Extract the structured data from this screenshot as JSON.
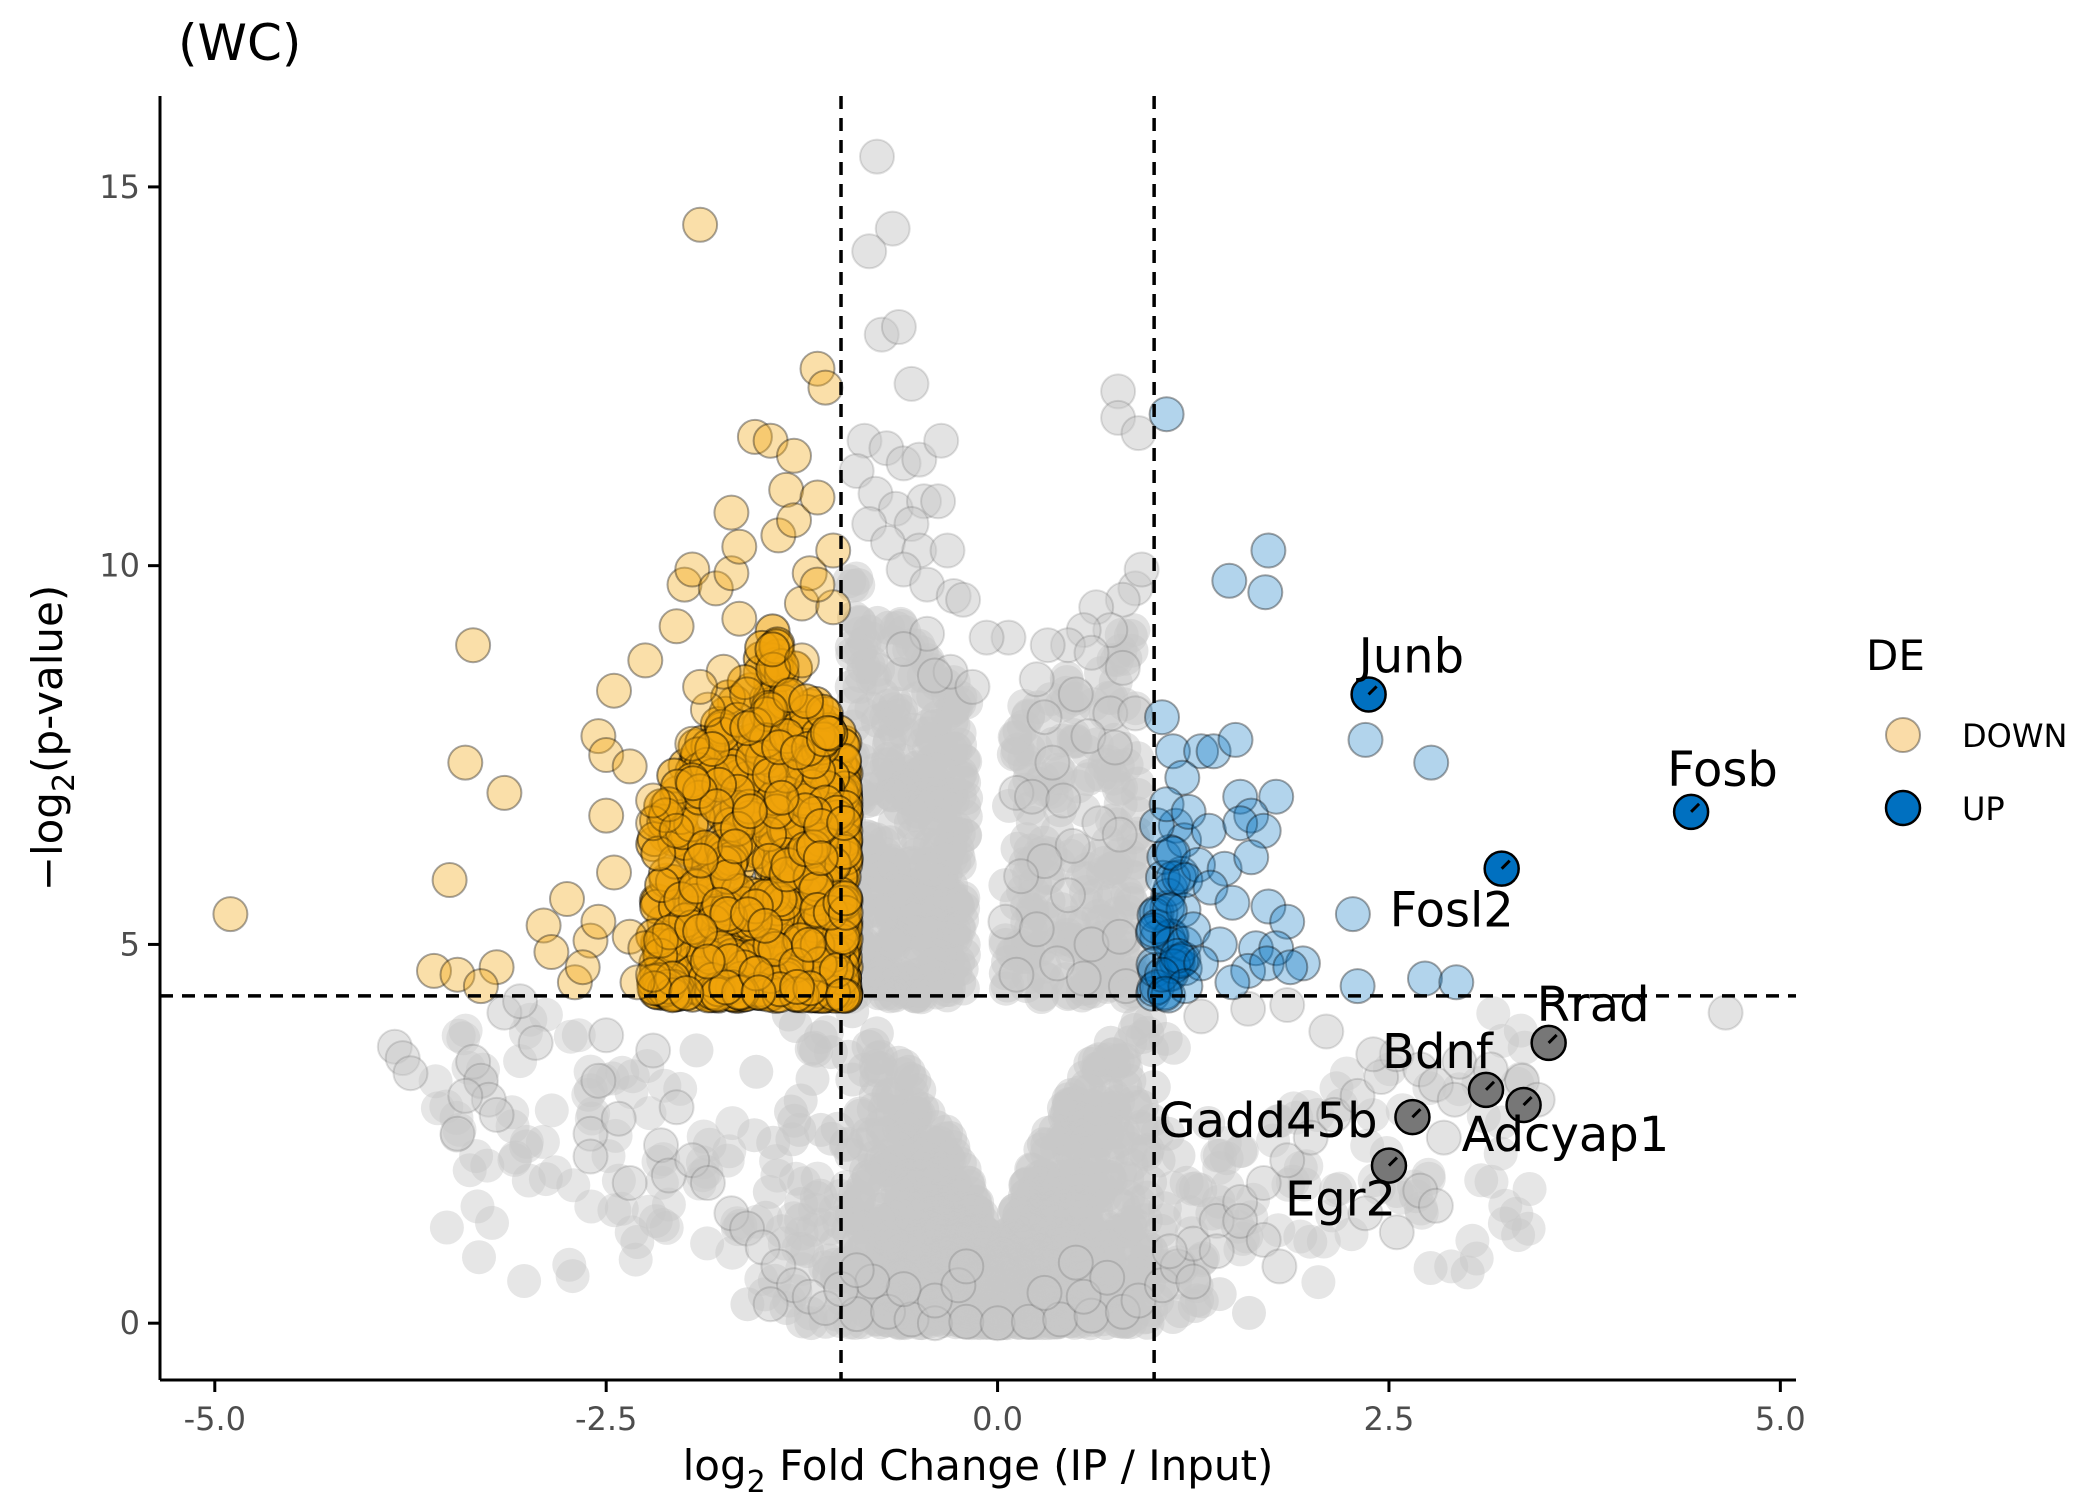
{
  "chart_data": {
    "type": "scatter",
    "title": "(WC)",
    "xlabel": "Fold Change (IP / Input)",
    "xlabel_prefix": "log",
    "xlabel_sub": "2",
    "ylabel": "(p-value)",
    "ylabel_prefix": "−log",
    "ylabel_sub": "2",
    "xlim": [
      -5.35,
      5.1
    ],
    "ylim": [
      -0.75,
      16.2
    ],
    "x_ticks": [
      -5.0,
      -2.5,
      0.0,
      2.5,
      5.0
    ],
    "x_tick_labels": [
      "-5.0",
      "-2.5",
      "0.0",
      "2.5",
      "5.0"
    ],
    "y_ticks": [
      0,
      5,
      10,
      15
    ],
    "y_tick_labels": [
      "0",
      "5",
      "10",
      "15"
    ],
    "thresholds": {
      "fc": [
        -1,
        1
      ],
      "pvalue": 4.32
    },
    "grid": false,
    "legend": {
      "title": "DE",
      "placement": "right",
      "entries": [
        {
          "label": "DOWN",
          "color": "#F5C060"
        },
        {
          "label": "UP",
          "color": "#1F77B4"
        }
      ]
    },
    "colors": {
      "down": "#F0A30A",
      "up": "#0070C0",
      "ns": "#C8C8C8",
      "highlight_ns": "#777777"
    },
    "down_points": [
      [
        -4.9,
        5.4
      ],
      [
        -3.35,
        8.95
      ],
      [
        -3.4,
        7.4
      ],
      [
        -3.15,
        7.0
      ],
      [
        -3.5,
        5.85
      ],
      [
        -3.6,
        4.65
      ],
      [
        -3.45,
        4.6
      ],
      [
        -3.2,
        4.7
      ],
      [
        -3.3,
        4.45
      ],
      [
        -2.9,
        5.25
      ],
      [
        -2.85,
        4.9
      ],
      [
        -2.75,
        5.6
      ],
      [
        -2.7,
        4.5
      ],
      [
        -2.6,
        5.05
      ],
      [
        -2.65,
        4.7
      ],
      [
        -2.55,
        5.3
      ],
      [
        -2.5,
        6.7
      ],
      [
        -2.55,
        7.75
      ],
      [
        -2.5,
        7.5
      ],
      [
        -2.45,
        8.35
      ],
      [
        -2.45,
        5.95
      ],
      [
        -2.35,
        5.1
      ],
      [
        -2.3,
        4.5
      ],
      [
        -2.25,
        8.75
      ],
      [
        -2.2,
        6.6
      ],
      [
        -2.25,
        4.95
      ],
      [
        -2.15,
        5.05
      ],
      [
        -2.2,
        4.6
      ],
      [
        -2.1,
        6.85
      ],
      [
        -2.05,
        6.5
      ],
      [
        -2.05,
        9.2
      ],
      [
        -2.0,
        9.75
      ],
      [
        -1.95,
        9.95
      ],
      [
        -1.95,
        7.65
      ],
      [
        -1.9,
        14.5
      ],
      [
        -1.85,
        8.1
      ],
      [
        -1.8,
        9.7
      ],
      [
        -1.75,
        8.6
      ],
      [
        -1.7,
        9.9
      ],
      [
        -1.65,
        9.3
      ],
      [
        -1.65,
        10.25
      ],
      [
        -1.7,
        10.7
      ],
      [
        -1.55,
        11.7
      ],
      [
        -1.45,
        11.65
      ],
      [
        -1.4,
        10.4
      ],
      [
        -1.3,
        11.45
      ],
      [
        -1.35,
        11.0
      ],
      [
        -1.3,
        10.6
      ],
      [
        -1.25,
        9.5
      ],
      [
        -1.2,
        9.9
      ],
      [
        -1.15,
        10.9
      ],
      [
        -1.15,
        12.6
      ],
      [
        -1.1,
        12.35
      ],
      [
        -1.05,
        9.45
      ],
      [
        -1.05,
        10.2
      ],
      [
        -1.15,
        9.75
      ],
      [
        -1.6,
        8.3
      ],
      [
        -1.55,
        7.9
      ],
      [
        -1.45,
        8.1
      ],
      [
        -1.25,
        8.75
      ],
      [
        -1.9,
        8.4
      ],
      [
        -2.35,
        7.35
      ],
      [
        -2.2,
        6.9
      ]
    ],
    "up_points": [
      [
        1.08,
        12.0
      ],
      [
        1.73,
        10.2
      ],
      [
        1.48,
        9.8
      ],
      [
        1.71,
        9.65
      ],
      [
        1.05,
        8.0
      ],
      [
        2.35,
        7.7
      ],
      [
        2.77,
        7.4
      ],
      [
        1.12,
        7.55
      ],
      [
        1.3,
        7.55
      ],
      [
        1.38,
        7.55
      ],
      [
        1.52,
        7.7
      ],
      [
        1.18,
        7.2
      ],
      [
        1.55,
        6.95
      ],
      [
        1.78,
        6.95
      ],
      [
        1.62,
        6.7
      ],
      [
        1.08,
        6.85
      ],
      [
        1.22,
        6.75
      ],
      [
        1.35,
        6.5
      ],
      [
        1.55,
        6.6
      ],
      [
        1.7,
        6.5
      ],
      [
        1.12,
        6.2
      ],
      [
        1.28,
        6.05
      ],
      [
        1.45,
        6.0
      ],
      [
        1.62,
        6.15
      ],
      [
        1.2,
        5.85
      ],
      [
        1.36,
        5.75
      ],
      [
        1.5,
        5.55
      ],
      [
        1.73,
        5.5
      ],
      [
        1.85,
        5.3
      ],
      [
        2.27,
        5.4
      ],
      [
        1.1,
        5.45
      ],
      [
        1.25,
        5.2
      ],
      [
        1.42,
        5.0
      ],
      [
        1.65,
        4.95
      ],
      [
        1.78,
        4.95
      ],
      [
        1.95,
        4.75
      ],
      [
        1.15,
        4.85
      ],
      [
        1.3,
        4.75
      ],
      [
        1.6,
        4.65
      ],
      [
        1.72,
        4.75
      ],
      [
        1.87,
        4.7
      ],
      [
        2.3,
        4.45
      ],
      [
        2.73,
        4.55
      ],
      [
        2.93,
        4.5
      ],
      [
        1.05,
        4.6
      ],
      [
        1.2,
        4.45
      ],
      [
        1.5,
        4.5
      ],
      [
        1.07,
        4.35
      ]
    ],
    "up_sig_points": [
      {
        "label": "Junb",
        "x": 2.37,
        "y": 8.3
      },
      {
        "label": "Fosb",
        "x": 4.43,
        "y": 6.75
      },
      {
        "label": "Fosl2",
        "x": 3.22,
        "y": 6.0
      }
    ],
    "ns_labeled_points": [
      {
        "label": "Rrad",
        "x": 3.52,
        "y": 3.7
      },
      {
        "label": "Bdnf",
        "x": 3.12,
        "y": 3.08
      },
      {
        "label": "Adcyap1",
        "x": 3.36,
        "y": 2.88
      },
      {
        "label": "Gadd45b",
        "x": 2.65,
        "y": 2.72
      },
      {
        "label": "Egr2",
        "x": 2.5,
        "y": 2.08
      }
    ],
    "ns_points": [
      [
        -0.77,
        15.4
      ],
      [
        -0.67,
        14.45
      ],
      [
        -0.82,
        14.15
      ],
      [
        -0.74,
        13.05
      ],
      [
        -0.63,
        13.15
      ],
      [
        -0.55,
        12.4
      ],
      [
        -0.85,
        11.65
      ],
      [
        -0.71,
        11.55
      ],
      [
        -0.6,
        11.35
      ],
      [
        -0.5,
        11.4
      ],
      [
        -0.36,
        11.65
      ],
      [
        -0.9,
        11.25
      ],
      [
        -0.78,
        10.95
      ],
      [
        -0.65,
        10.75
      ],
      [
        -0.47,
        10.85
      ],
      [
        -0.55,
        10.55
      ],
      [
        -0.38,
        10.85
      ],
      [
        -0.82,
        10.55
      ],
      [
        -0.7,
        10.3
      ],
      [
        -0.5,
        10.2
      ],
      [
        -0.32,
        10.2
      ],
      [
        -0.6,
        9.95
      ],
      [
        -0.45,
        9.75
      ],
      [
        -0.28,
        9.6
      ],
      [
        -0.22,
        9.55
      ],
      [
        0.07,
        9.05
      ],
      [
        -0.07,
        9.05
      ],
      [
        -0.3,
        8.6
      ],
      [
        -0.16,
        8.4
      ],
      [
        -0.45,
        9.1
      ],
      [
        -0.6,
        8.9
      ],
      [
        -0.4,
        8.55
      ],
      [
        0.77,
        12.3
      ],
      [
        0.77,
        11.95
      ],
      [
        0.9,
        11.75
      ],
      [
        0.88,
        9.7
      ],
      [
        0.8,
        9.55
      ],
      [
        0.63,
        9.45
      ],
      [
        0.92,
        9.95
      ],
      [
        0.72,
        9.15
      ],
      [
        0.55,
        9.15
      ],
      [
        0.45,
        8.95
      ],
      [
        0.32,
        8.95
      ],
      [
        0.6,
        8.85
      ],
      [
        0.8,
        8.65
      ],
      [
        0.25,
        8.5
      ],
      [
        0.5,
        8.3
      ],
      [
        0.72,
        8.05
      ],
      [
        0.88,
        8.05
      ],
      [
        0.3,
        8.0
      ],
      [
        0.58,
        7.75
      ],
      [
        0.75,
        7.6
      ],
      [
        0.35,
        7.4
      ],
      [
        0.12,
        7.0
      ],
      [
        0.22,
        6.95
      ],
      [
        0.42,
        6.9
      ],
      [
        0.65,
        6.6
      ],
      [
        0.78,
        6.45
      ],
      [
        0.48,
        6.3
      ],
      [
        0.3,
        6.1
      ],
      [
        0.15,
        5.9
      ],
      [
        0.45,
        5.65
      ],
      [
        0.05,
        5.3
      ],
      [
        0.25,
        5.2
      ],
      [
        0.6,
        5.0
      ],
      [
        0.78,
        5.1
      ],
      [
        0.38,
        4.75
      ],
      [
        0.12,
        4.6
      ],
      [
        0.55,
        4.55
      ],
      [
        0.82,
        4.45
      ],
      [
        -3.85,
        3.65
      ],
      [
        -3.8,
        3.5
      ],
      [
        -3.75,
        3.3
      ],
      [
        -3.35,
        3.45
      ],
      [
        -3.3,
        3.2
      ],
      [
        -3.25,
        2.95
      ],
      [
        -3.4,
        3.0
      ],
      [
        -3.45,
        2.5
      ],
      [
        -3.2,
        2.75
      ],
      [
        -3.15,
        4.1
      ],
      [
        -3.05,
        4.25
      ],
      [
        -2.95,
        3.7
      ],
      [
        -2.6,
        2.5
      ],
      [
        -2.6,
        2.2
      ],
      [
        -2.55,
        3.2
      ],
      [
        -2.5,
        3.8
      ],
      [
        -2.42,
        2.7
      ],
      [
        -2.35,
        1.85
      ],
      [
        -2.2,
        3.6
      ],
      [
        -2.15,
        2.35
      ],
      [
        -2.1,
        1.95
      ],
      [
        -2.05,
        2.85
      ],
      [
        -1.95,
        2.15
      ],
      [
        -1.85,
        1.85
      ],
      [
        -1.7,
        1.45
      ],
      [
        -1.6,
        1.25
      ],
      [
        -1.5,
        1.0
      ],
      [
        -1.4,
        0.75
      ],
      [
        -1.3,
        0.5
      ],
      [
        -1.2,
        0.35
      ],
      [
        -1.45,
        0.25
      ],
      [
        -1.1,
        0.2
      ],
      [
        -0.9,
        0.12
      ],
      [
        -0.7,
        0.15
      ],
      [
        -0.55,
        0.05
      ],
      [
        -0.4,
        0.0
      ],
      [
        -0.2,
        0.02
      ],
      [
        0.0,
        0.0
      ],
      [
        0.2,
        0.02
      ],
      [
        0.4,
        0.05
      ],
      [
        0.6,
        0.1
      ],
      [
        0.8,
        0.15
      ],
      [
        0.9,
        0.3
      ],
      [
        1.05,
        0.5
      ],
      [
        1.15,
        0.75
      ],
      [
        1.25,
        1.05
      ],
      [
        1.4,
        1.35
      ],
      [
        1.55,
        1.6
      ],
      [
        1.7,
        1.85
      ],
      [
        1.85,
        2.15
      ],
      [
        2.0,
        2.45
      ],
      [
        2.15,
        2.75
      ],
      [
        2.3,
        3.0
      ],
      [
        2.45,
        3.25
      ],
      [
        2.55,
        3.55
      ],
      [
        2.7,
        3.35
      ],
      [
        2.8,
        3.15
      ],
      [
        2.92,
        2.95
      ],
      [
        2.95,
        3.45
      ],
      [
        2.85,
        2.45
      ],
      [
        2.7,
        1.75
      ],
      [
        2.8,
        1.55
      ],
      [
        2.35,
        1.45
      ],
      [
        2.55,
        1.2
      ],
      [
        3.15,
        3.35
      ],
      [
        3.35,
        3.2
      ],
      [
        3.45,
        2.95
      ],
      [
        2.4,
        3.55
      ],
      [
        2.1,
        3.85
      ],
      [
        1.85,
        4.2
      ],
      [
        1.6,
        4.15
      ],
      [
        1.3,
        4.05
      ],
      [
        4.65,
        4.1
      ],
      [
        1.1,
        0.95
      ],
      [
        1.25,
        0.55
      ],
      [
        1.4,
        0.95
      ],
      [
        1.55,
        1.35
      ],
      [
        1.7,
        1.1
      ],
      [
        1.8,
        0.75
      ],
      [
        -0.4,
        0.3
      ],
      [
        -0.6,
        0.45
      ],
      [
        -0.8,
        0.55
      ],
      [
        -1.0,
        0.45
      ],
      [
        -0.25,
        0.5
      ],
      [
        0.3,
        0.4
      ],
      [
        0.55,
        0.35
      ],
      [
        0.7,
        0.6
      ],
      [
        0.5,
        0.8
      ],
      [
        -0.2,
        0.75
      ],
      [
        -0.9,
        0.7
      ]
    ],
    "dense_regions": {
      "down_core": {
        "x": [
          -2.2,
          -0.97
        ],
        "y_min": 4.32,
        "y_max": 9.2,
        "skew": 1.6
      },
      "ns_top_cluster": {
        "x": [
          -0.95,
          0.9
        ],
        "y_min": 4.3,
        "y_max": 10.0
      },
      "ns_main": {
        "x": [
          -1.9,
          1.9
        ],
        "y_min": 0.0,
        "y_max": 4.3
      },
      "ns_wide": {
        "x": [
          -3.6,
          3.4
        ],
        "y_min": 0.5,
        "y_max": 4.2
      },
      "up_strip": {
        "x": [
          0.99,
          1.2
        ],
        "y_min": 4.32,
        "y_max": 6.6
      }
    }
  }
}
